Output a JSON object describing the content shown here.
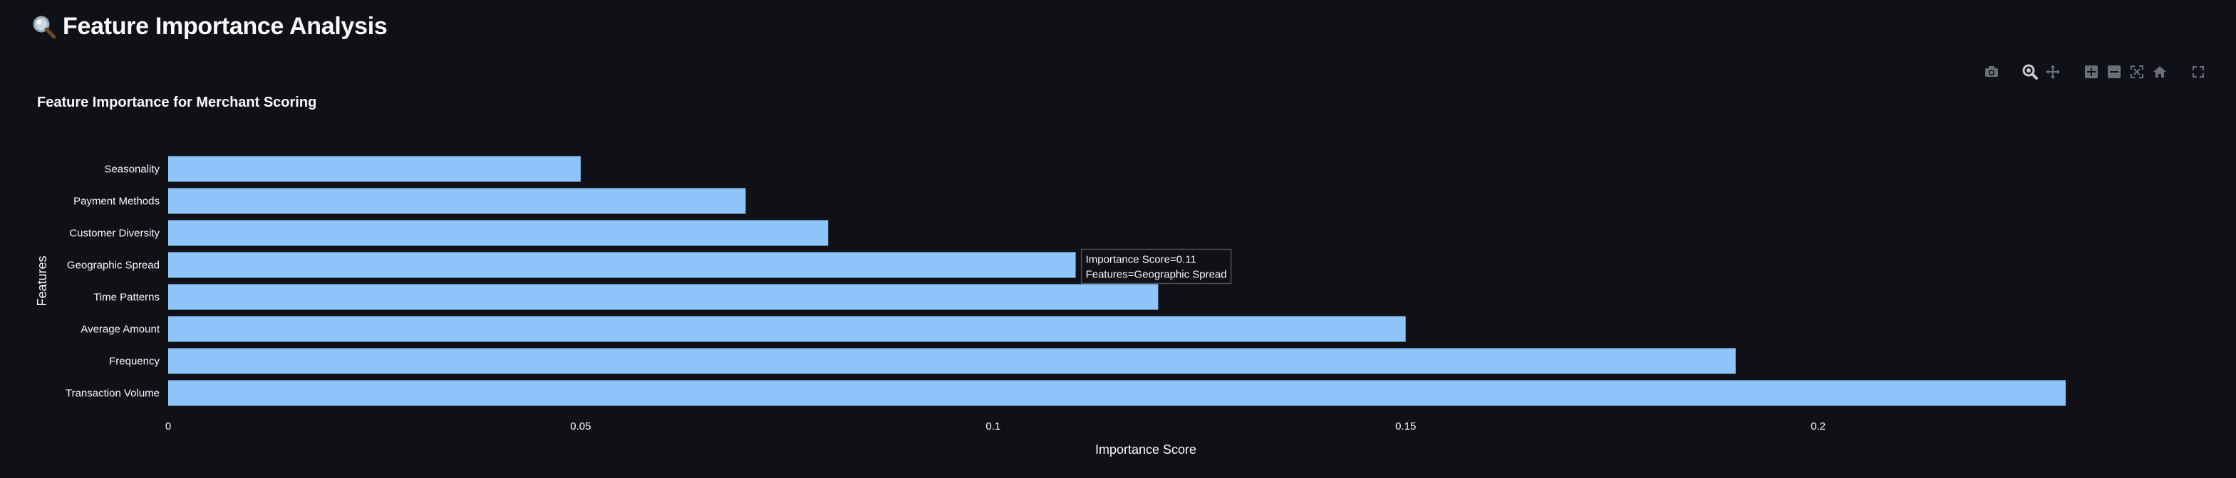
{
  "page": {
    "title": "Feature Importance Analysis",
    "title_icon": "magnifying-glass-icon"
  },
  "modebar": {
    "icons": [
      "camera-icon",
      "zoom-icon",
      "pan-icon",
      "zoom-in-icon",
      "zoom-out-icon",
      "autoscale-icon",
      "reset-axes-icon",
      "fullscreen-icon"
    ]
  },
  "tooltip": {
    "line1": "Importance Score=0.11",
    "line2": "Features=Geographic Spread"
  },
  "colors": {
    "background": "#0f1116",
    "bar": "#8fc4fb",
    "text": "#fafafa",
    "modebar_icon": "#6b6f78",
    "tooltip_border": "#4d4f55"
  },
  "chart_data": {
    "type": "bar",
    "orientation": "horizontal",
    "title": "Feature Importance for Merchant Scoring",
    "xlabel": "Importance Score",
    "ylabel": "Features",
    "categories": [
      "Transaction Volume",
      "Frequency",
      "Average Amount",
      "Time Patterns",
      "Geographic Spread",
      "Customer Diversity",
      "Payment Methods",
      "Seasonality"
    ],
    "values": [
      0.23,
      0.19,
      0.15,
      0.12,
      0.11,
      0.08,
      0.07,
      0.05
    ],
    "xlim": [
      0,
      0.237
    ],
    "xticks": [
      0,
      0.05,
      0.1,
      0.15,
      0.2
    ],
    "xtick_labels": [
      "0",
      "0.05",
      "0.1",
      "0.15",
      "0.2"
    ],
    "grid": false,
    "hovered_category": "Geographic Spread"
  }
}
